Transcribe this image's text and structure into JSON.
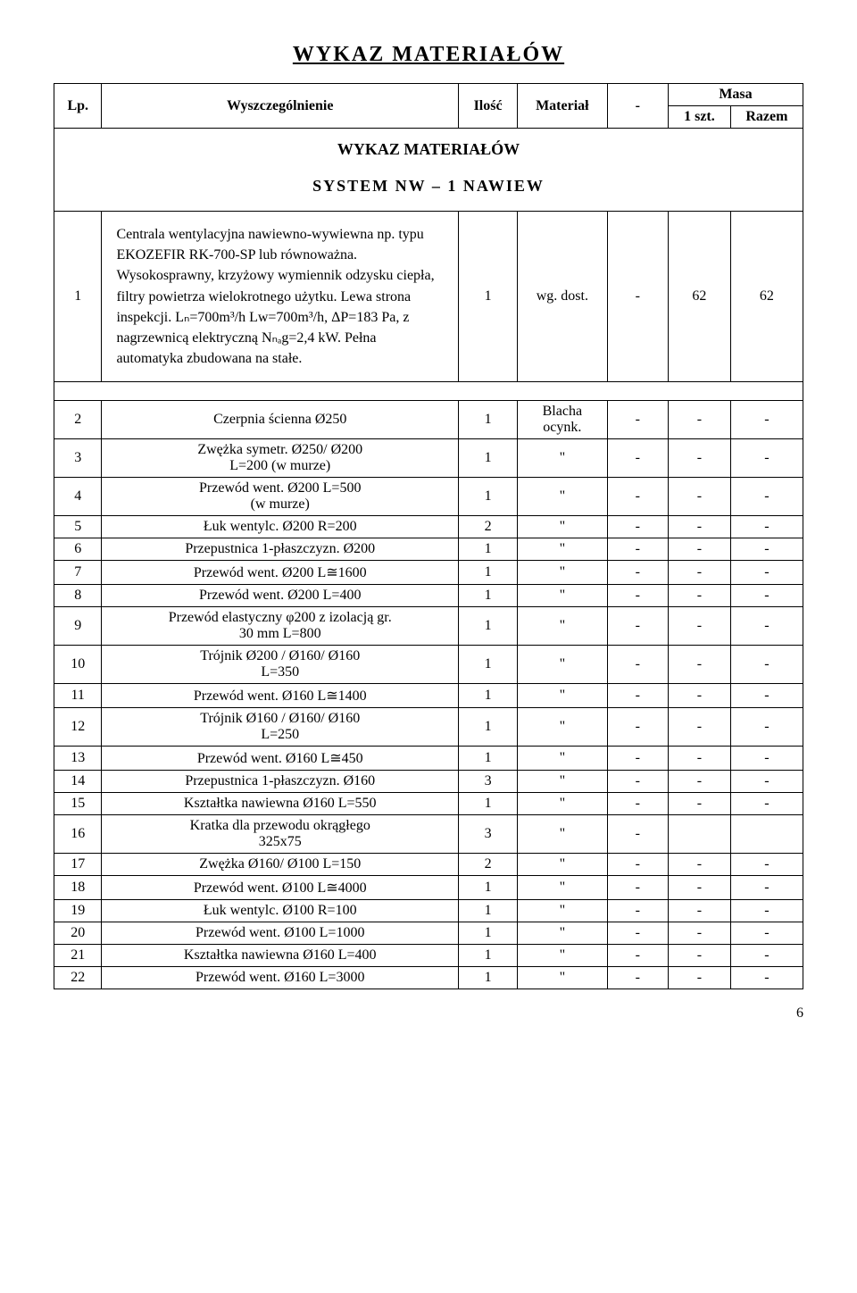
{
  "doc_title": "WYKAZ  MATERIAŁÓW",
  "header": {
    "lp": "Lp.",
    "desc": "Wyszczególnienie",
    "ilosc": "Ilość",
    "material": "Materiał",
    "dash": "-",
    "masa": "Masa",
    "szt": "1 szt.",
    "razem": "Razem"
  },
  "section_heading": "WYKAZ MATERIAŁÓW",
  "system_heading": "SYSTEM NW – 1     NAWIEW",
  "centrala": {
    "lp": "1",
    "text": "Centrala wentylacyjna nawiewno-wywiewna np. typu EKOZEFIR RK-700-SP lub równoważna. Wysokosprawny, krzyżowy wymiennik odzysku ciepła, filtry powietrza wielokrotnego użytku. Lewa strona inspekcji. Lₙ=700m³/h Lᴡ=700m³/h, ΔP=183 Pa, z nagrzewnicą elektryczną Nₙₐg=2,4 kW. Pełna automatyka zbudowana na stałe.",
    "ilosc": "1",
    "material": "wg. dost.",
    "dash": "-",
    "szt": "62",
    "razem": "62"
  },
  "rows": [
    {
      "lp": "2",
      "desc": "Czerpnia ścienna  Ø250",
      "ilosc": "1",
      "mat": "Blacha\nocynk.",
      "dash": "-",
      "szt": "-",
      "razem": "-",
      "desc_align": "center"
    },
    {
      "lp": "3",
      "desc": "Zwężka symetr. Ø250/ Ø200\nL=200  (w murze)",
      "ilosc": "1",
      "mat": "\"",
      "dash": "-",
      "szt": "-",
      "razem": "-",
      "desc_align": "center"
    },
    {
      "lp": "4",
      "desc": "Przewód went. Ø200  L=500\n(w murze)",
      "ilosc": "1",
      "mat": "\"",
      "dash": "-",
      "szt": "-",
      "razem": "-",
      "desc_align": "center"
    },
    {
      "lp": "5",
      "desc": "Łuk wentylc. Ø200  R=200",
      "ilosc": "2",
      "mat": "\"",
      "dash": "-",
      "szt": "-",
      "razem": "-",
      "desc_align": "center"
    },
    {
      "lp": "6",
      "desc": "Przepustnica 1-płaszczyzn. Ø200",
      "ilosc": "1",
      "mat": "\"",
      "dash": "-",
      "szt": "-",
      "razem": "-",
      "desc_align": "center"
    },
    {
      "lp": "7",
      "desc": "Przewód went. Ø200 L≅1600",
      "ilosc": "1",
      "mat": "\"",
      "dash": "-",
      "szt": "-",
      "razem": "-",
      "desc_align": "center"
    },
    {
      "lp": "8",
      "desc": "Przewód went. Ø200 L=400",
      "ilosc": "1",
      "mat": "\"",
      "dash": "-",
      "szt": "-",
      "razem": "-",
      "desc_align": "center"
    },
    {
      "lp": "9",
      "desc": "Przewód elastyczny φ200 z izolacją gr.\n30 mm      L=800",
      "ilosc": "1",
      "mat": "\"",
      "dash": "-",
      "szt": "-",
      "razem": "-",
      "desc_align": "center"
    },
    {
      "lp": "10",
      "desc": "Trójnik Ø200 / Ø160/ Ø160\nL=350",
      "ilosc": "1",
      "mat": "\"",
      "dash": "-",
      "szt": "-",
      "razem": "-",
      "desc_align": "center"
    },
    {
      "lp": "11",
      "desc": "Przewód went. Ø160 L≅1400",
      "ilosc": "1",
      "mat": "\"",
      "dash": "-",
      "szt": "-",
      "razem": "-",
      "desc_align": "center"
    },
    {
      "lp": "12",
      "desc": "Trójnik Ø160 / Ø160/ Ø160\nL=250",
      "ilosc": "1",
      "mat": "\"",
      "dash": "-",
      "szt": "-",
      "razem": "-",
      "desc_align": "center"
    },
    {
      "lp": "13",
      "desc": "Przewód went. Ø160  L≅450",
      "ilosc": "1",
      "mat": "\"",
      "dash": "-",
      "szt": "-",
      "razem": "-",
      "desc_align": "center"
    },
    {
      "lp": "14",
      "desc": "Przepustnica 1-płaszczyzn. Ø160",
      "ilosc": "3",
      "mat": "\"",
      "dash": "-",
      "szt": "-",
      "razem": "-",
      "desc_align": "center"
    },
    {
      "lp": "15",
      "desc": "Kształtka nawiewna Ø160  L=550",
      "ilosc": "1",
      "mat": "\"",
      "dash": "-",
      "szt": "-",
      "razem": "-",
      "desc_align": "center"
    },
    {
      "lp": "16",
      "desc": "Kratka dla przewodu okrągłego\n325x75",
      "ilosc": "3",
      "mat": "\"",
      "dash": "-",
      "szt": "",
      "razem": "",
      "desc_align": "center"
    },
    {
      "lp": "17",
      "desc": "Zwężka Ø160/ Ø100  L=150",
      "ilosc": "2",
      "mat": "\"",
      "dash": "-",
      "szt": "-",
      "razem": "-",
      "desc_align": "center"
    },
    {
      "lp": "18",
      "desc": "Przewód went. Ø100 L≅4000",
      "ilosc": "1",
      "mat": "\"",
      "dash": "-",
      "szt": "-",
      "razem": "-",
      "desc_align": "center"
    },
    {
      "lp": "19",
      "desc": "Łuk wentylc. Ø100  R=100",
      "ilosc": "1",
      "mat": "\"",
      "dash": "-",
      "szt": "-",
      "razem": "-",
      "desc_align": "center"
    },
    {
      "lp": "20",
      "desc": "Przewód went. Ø100 L=1000",
      "ilosc": "1",
      "mat": "\"",
      "dash": "-",
      "szt": "-",
      "razem": "-",
      "desc_align": "center"
    },
    {
      "lp": "21",
      "desc": "Kształtka nawiewna Ø160  L=400",
      "ilosc": "1",
      "mat": "\"",
      "dash": "-",
      "szt": "-",
      "razem": "-",
      "desc_align": "center"
    },
    {
      "lp": "22",
      "desc": "Przewód went. Ø160 L=3000",
      "ilosc": "1",
      "mat": "\"",
      "dash": "-",
      "szt": "-",
      "razem": "-",
      "desc_align": "center"
    }
  ],
  "page_number": "6"
}
